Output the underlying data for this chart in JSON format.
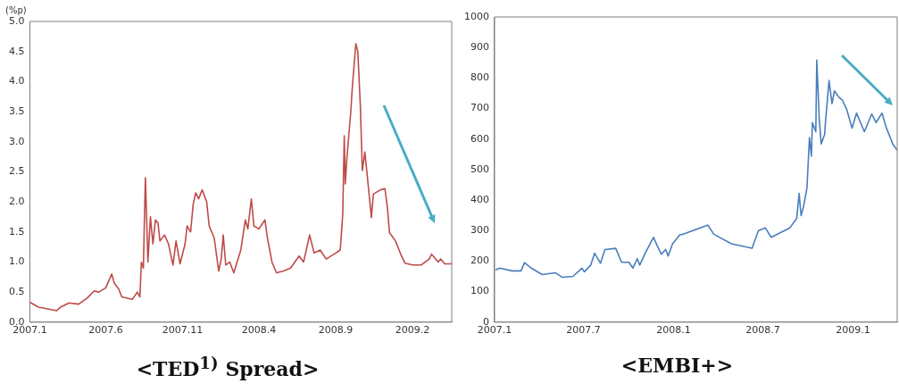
{
  "chart_data": [
    {
      "type": "line",
      "title": "<TED$^{1)}$ Spread>",
      "ylabel": "(%p)",
      "grid": false,
      "marker": "none",
      "line_style": "solid",
      "x": [
        "2007-01-01",
        "2007-01-18",
        "2007-02-06",
        "2007-02-23",
        "2007-03-03",
        "2007-03-20",
        "2007-04-08",
        "2007-04-25",
        "2007-05-09",
        "2007-05-18",
        "2007-06-01",
        "2007-06-13",
        "2007-06-18",
        "2007-06-27",
        "2007-07-03",
        "2007-07-24",
        "2007-08-03",
        "2007-08-08",
        "2007-08-11",
        "2007-08-15",
        "2007-08-17",
        "2007-08-19",
        "2007-08-21",
        "2007-08-24",
        "2007-08-29",
        "2007-09-03",
        "2007-09-08",
        "2007-09-13",
        "2007-09-17",
        "2007-09-26",
        "2007-10-04",
        "2007-10-13",
        "2007-10-19",
        "2007-10-27",
        "2007-11-06",
        "2007-11-10",
        "2007-11-17",
        "2007-11-22",
        "2007-11-27",
        "2007-12-03",
        "2007-12-10",
        "2007-12-19",
        "2007-12-24",
        "2008-01-03",
        "2008-01-12",
        "2008-01-17",
        "2008-01-21",
        "2008-01-26",
        "2008-02-03",
        "2008-02-11",
        "2008-02-25",
        "2008-03-05",
        "2008-03-10",
        "2008-03-17",
        "2008-03-22",
        "2008-04-01",
        "2008-04-13",
        "2008-04-18",
        "2008-04-27",
        "2008-05-06",
        "2008-05-20",
        "2008-06-03",
        "2008-06-20",
        "2008-06-29",
        "2008-07-11",
        "2008-07-20",
        "2008-08-01",
        "2008-08-13",
        "2008-09-01",
        "2008-09-10",
        "2008-09-15",
        "2008-09-18",
        "2008-09-20",
        "2008-09-23",
        "2008-09-29",
        "2008-10-01",
        "2008-10-04",
        "2008-10-11",
        "2008-10-15",
        "2008-10-20",
        "2008-10-24",
        "2008-10-29",
        "2008-11-08",
        "2008-11-11",
        "2008-11-15",
        "2008-11-29",
        "2008-12-08",
        "2008-12-13",
        "2008-12-17",
        "2008-12-29",
        "2009-01-10",
        "2009-01-17",
        "2009-02-01",
        "2009-02-18",
        "2009-03-06",
        "2009-03-11",
        "2009-03-24",
        "2009-03-29",
        "2009-04-06",
        "2009-04-20"
      ],
      "series": [
        {
          "color": "#be4b48",
          "values": [
            0.33,
            0.25,
            0.22,
            0.19,
            0.25,
            0.32,
            0.3,
            0.4,
            0.52,
            0.5,
            0.57,
            0.8,
            0.65,
            0.55,
            0.42,
            0.38,
            0.5,
            0.42,
            1.0,
            0.9,
            1.7,
            2.4,
            1.85,
            1.0,
            1.75,
            1.3,
            1.7,
            1.65,
            1.35,
            1.45,
            1.3,
            0.95,
            1.35,
            0.97,
            1.3,
            1.6,
            1.5,
            1.95,
            2.15,
            2.05,
            2.2,
            2.0,
            1.6,
            1.4,
            0.85,
            1.05,
            1.45,
            0.95,
            1.0,
            0.82,
            1.2,
            1.7,
            1.55,
            2.05,
            1.6,
            1.55,
            1.7,
            1.4,
            1.0,
            0.82,
            0.85,
            0.9,
            1.1,
            1.0,
            1.45,
            1.15,
            1.2,
            1.05,
            1.15,
            1.2,
            1.8,
            3.1,
            2.3,
            2.7,
            3.3,
            3.5,
            3.9,
            4.63,
            4.5,
            3.6,
            2.52,
            2.83,
            2.0,
            1.74,
            2.13,
            2.2,
            2.22,
            1.9,
            1.49,
            1.35,
            1.1,
            0.98,
            0.95,
            0.95,
            1.05,
            1.13,
            1.0,
            1.05,
            0.97,
            0.97
          ]
        }
      ],
      "xlim": [
        "2007-01-01",
        "2009-04-20"
      ],
      "xticks": [
        {
          "value": "2007-01",
          "label": "2007.1"
        },
        {
          "value": "2007-06",
          "label": "2007.6"
        },
        {
          "value": "2007-11",
          "label": "2007.11"
        },
        {
          "value": "2008-04",
          "label": "2008.4"
        },
        {
          "value": "2008-09",
          "label": "2008.9"
        },
        {
          "value": "2009-02",
          "label": "2009.2"
        }
      ],
      "ylim": [
        0,
        5
      ],
      "yticks": [
        {
          "value": 0,
          "label": "0.0"
        },
        0.5,
        {
          "value": 1,
          "label": "1.0"
        },
        1.5,
        {
          "value": 2,
          "label": "2.0"
        },
        2.5,
        {
          "value": 3,
          "label": "3.0"
        },
        3.5,
        {
          "value": 4,
          "label": "4.0"
        },
        4.5,
        {
          "value": 5,
          "label": "5.0"
        }
      ]
    },
    {
      "type": "line",
      "title": "<EMBI+>",
      "grid": false,
      "marker": "none",
      "line_style": "solid",
      "x": [
        "2007-01-03",
        "2007-01-12",
        "2007-02-06",
        "2007-02-24",
        "2007-03-03",
        "2007-03-17",
        "2007-04-08",
        "2007-05-05",
        "2007-05-19",
        "2007-06-10",
        "2007-06-28",
        "2007-07-03",
        "2007-07-16",
        "2007-07-24",
        "2007-08-05",
        "2007-08-14",
        "2007-09-05",
        "2007-09-17",
        "2007-10-02",
        "2007-10-10",
        "2007-10-19",
        "2007-10-24",
        "2007-11-04",
        "2007-11-21",
        "2007-11-28",
        "2007-12-07",
        "2007-12-16",
        "2007-12-21",
        "2007-12-30",
        "2008-01-14",
        "2008-01-18",
        "2008-03-11",
        "2008-03-23",
        "2008-04-28",
        "2008-06-09",
        "2008-06-22",
        "2008-07-06",
        "2008-07-18",
        "2008-08-25",
        "2008-09-08",
        "2008-09-13",
        "2008-09-17",
        "2008-09-22",
        "2008-09-29",
        "2008-10-04",
        "2008-10-08",
        "2008-10-10",
        "2008-10-17",
        "2008-10-19",
        "2008-10-24",
        "2008-10-28",
        "2008-11-04",
        "2008-11-06",
        "2008-11-13",
        "2008-11-19",
        "2008-11-24",
        "2008-12-03",
        "2008-12-10",
        "2008-12-19",
        "2008-12-30",
        "2009-01-08",
        "2009-01-24",
        "2009-02-08",
        "2009-02-17",
        "2009-03-01",
        "2009-03-10",
        "2009-03-23",
        "2009-04-01"
      ],
      "series": [
        {
          "color": "#4a7ebb",
          "values": [
            171,
            177,
            168,
            168,
            195,
            177,
            156,
            162,
            147,
            150,
            177,
            165,
            187,
            226,
            193,
            238,
            242,
            196,
            196,
            177,
            208,
            187,
            226,
            278,
            253,
            223,
            238,
            217,
            257,
            287,
            287,
            318,
            288,
            257,
            242,
            300,
            309,
            278,
            309,
            340,
            422,
            349,
            379,
            440,
            605,
            544,
            654,
            624,
            859,
            667,
            584,
            615,
            661,
            792,
            716,
            758,
            737,
            728,
            697,
            636,
            685,
            624,
            682,
            654,
            685,
            636,
            584,
            563
          ]
        }
      ],
      "xlim": [
        "2007-01-01",
        "2009-04-01"
      ],
      "xticks": [
        {
          "value": "2007-01",
          "label": "2007.1"
        },
        {
          "value": "2007-07",
          "label": "2007.7"
        },
        {
          "value": "2008-01",
          "label": "2008.1"
        },
        {
          "value": "2008-07",
          "label": "2008.7"
        },
        {
          "value": "2009-01",
          "label": "2009.1"
        }
      ],
      "ylim": [
        0,
        1000
      ],
      "yticks": [
        0,
        100,
        200,
        300,
        400,
        500,
        600,
        700,
        800,
        900,
        1000
      ]
    }
  ]
}
